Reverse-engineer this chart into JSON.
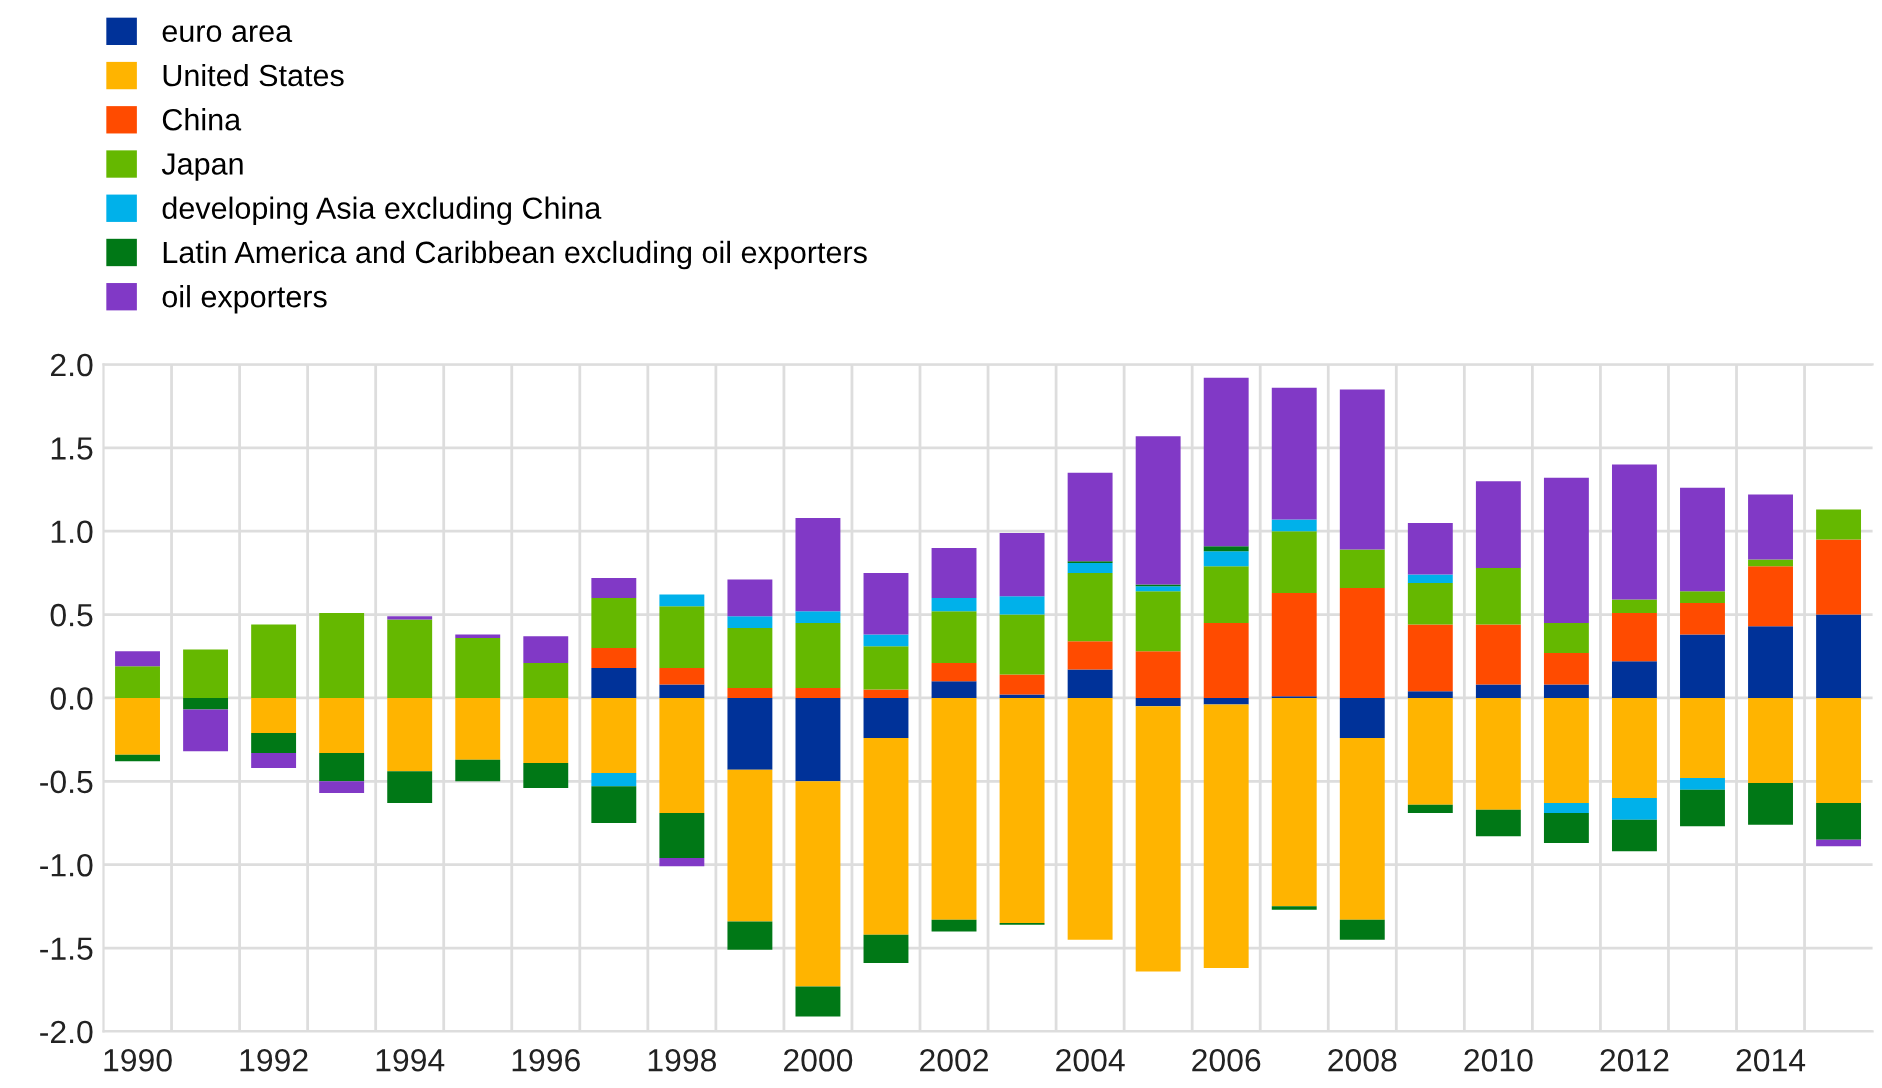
{
  "chart_data": {
    "type": "bar",
    "stacked": true,
    "categories": [
      "1990",
      null,
      "1992",
      null,
      "1994",
      null,
      "1996",
      null,
      "1998",
      null,
      "2000",
      null,
      "2002",
      null,
      "2004",
      null,
      "2006",
      null,
      "2008",
      null,
      "2010",
      null,
      "2012",
      null,
      "2014",
      null
    ],
    "series": [
      {
        "name": "euro area",
        "color": "#003299",
        "values": [
          0,
          0,
          0,
          0,
          0,
          0,
          0,
          0.18,
          0.08,
          -0.43,
          -0.5,
          -0.24,
          0.1,
          0.02,
          0.17,
          -0.05,
          -0.04,
          0.01,
          -0.24,
          0.04,
          0.08,
          0.08,
          0.22,
          0.38,
          0.43,
          0.5
        ]
      },
      {
        "name": "United States",
        "color": "#ffb400",
        "values": [
          -0.34,
          0,
          -0.21,
          -0.33,
          -0.44,
          -0.37,
          -0.39,
          -0.45,
          -0.69,
          -0.91,
          -1.23,
          -1.18,
          -1.33,
          -1.35,
          -1.45,
          -1.59,
          -1.58,
          -1.25,
          -1.09,
          -0.64,
          -0.67,
          -0.63,
          -0.6,
          -0.48,
          -0.51,
          -0.63
        ]
      },
      {
        "name": "China",
        "color": "#ff4b00",
        "values": [
          0,
          0,
          0,
          0,
          0,
          0,
          0,
          0.12,
          0.1,
          0.06,
          0.06,
          0.05,
          0.11,
          0.12,
          0.17,
          0.28,
          0.45,
          0.62,
          0.66,
          0.4,
          0.36,
          0.19,
          0.29,
          0.19,
          0.36,
          0.45
        ]
      },
      {
        "name": "Japan",
        "color": "#65b800",
        "values": [
          0.19,
          0.29,
          0.44,
          0.51,
          0.47,
          0.36,
          0.21,
          0.3,
          0.37,
          0.36,
          0.39,
          0.26,
          0.31,
          0.36,
          0.41,
          0.36,
          0.34,
          0.37,
          0.23,
          0.25,
          0.34,
          0.18,
          0.08,
          0.07,
          0.04,
          0.18
        ]
      },
      {
        "name": "developing Asia excluding China",
        "color": "#00b1ea",
        "values": [
          0,
          0,
          0,
          0,
          0,
          0,
          0,
          -0.08,
          0.07,
          0.07,
          0.07,
          0.07,
          0.08,
          0.11,
          0.06,
          0.03,
          0.09,
          0.07,
          0,
          0.05,
          0,
          -0.06,
          -0.13,
          -0.07,
          0,
          0
        ]
      },
      {
        "name": "Latin America and Caribbean excluding oil exporters",
        "color": "#007816",
        "values": [
          -0.04,
          -0.07,
          -0.12,
          -0.17,
          -0.19,
          -0.13,
          -0.15,
          -0.22,
          -0.27,
          -0.17,
          -0.18,
          -0.17,
          -0.07,
          -0.01,
          0.01,
          0.01,
          0.03,
          -0.02,
          -0.12,
          -0.05,
          -0.16,
          -0.18,
          -0.19,
          -0.22,
          -0.25,
          -0.22
        ]
      },
      {
        "name": "oil exporters",
        "color": "#8139c6",
        "values": [
          0.09,
          -0.25,
          -0.09,
          -0.07,
          0.02,
          0.02,
          0.16,
          0.12,
          -0.05,
          0.22,
          0.56,
          0.37,
          0.3,
          0.38,
          0.53,
          0.89,
          1.01,
          0.79,
          0.96,
          0.31,
          0.52,
          0.87,
          0.81,
          0.62,
          0.39,
          -0.04
        ]
      }
    ],
    "ylim": [
      -2.0,
      2.0
    ],
    "yticks": [
      {
        "value": -2.0,
        "label": "-2.0"
      },
      {
        "value": -1.5,
        "label": "-1.5"
      },
      {
        "value": -1.0,
        "label": "-1.0"
      },
      {
        "value": -0.5,
        "label": "-0.5"
      },
      {
        "value": 0.0,
        "label": "0.0"
      },
      {
        "value": 0.5,
        "label": "0.5"
      },
      {
        "value": 1.0,
        "label": "1.0"
      },
      {
        "value": 1.5,
        "label": "1.5"
      },
      {
        "value": 2.0,
        "label": "2.0"
      }
    ],
    "grid": true,
    "legend": "top left"
  }
}
